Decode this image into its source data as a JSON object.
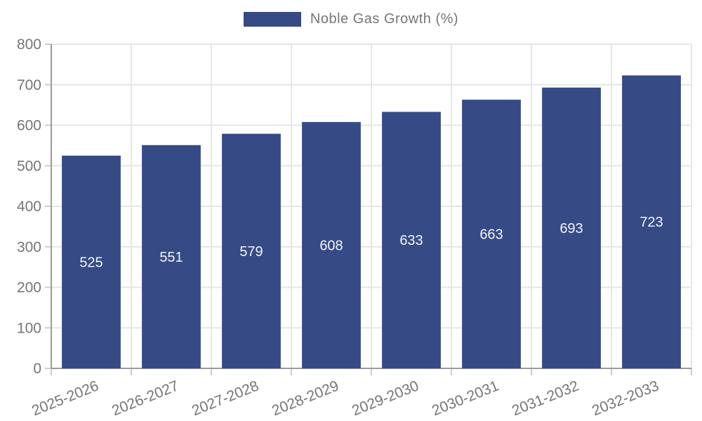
{
  "legend": {
    "label": "Noble Gas Growth (%)"
  },
  "colors": {
    "bar": "#364a86",
    "grid": "#e6e6e6",
    "axis": "#9b9b9b",
    "tick_mark": "#cccccc",
    "tick_label": "#757575",
    "value_label": "#f4f4f4",
    "background": "#ffffff"
  },
  "chart_data": {
    "type": "bar",
    "title": "",
    "legend": "Noble Gas Growth (%)",
    "categories": [
      "2025-2026",
      "2026-2027",
      "2027-2028",
      "2028-2029",
      "2029-2030",
      "2030-2031",
      "2031-2032",
      "2032-2033"
    ],
    "values": [
      525,
      551,
      579,
      608,
      633,
      663,
      693,
      723
    ],
    "xlabel": "",
    "ylabel": "",
    "ylim": [
      0,
      800
    ],
    "ytick_step": 100,
    "ytick_labels": [
      "0",
      "100",
      "200",
      "300",
      "400",
      "500",
      "600",
      "700",
      "800"
    ],
    "grid": true,
    "legend_position": "top-center",
    "x_tick_rotation_deg": -22,
    "value_label_position": "inside-center"
  }
}
